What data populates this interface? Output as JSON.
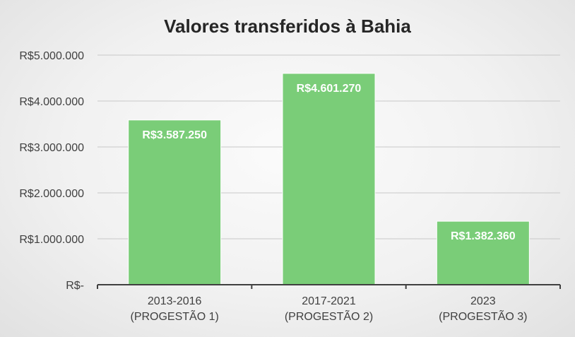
{
  "chart_data": {
    "type": "bar",
    "title": "Valores transferidos à Bahia",
    "categories": [
      [
        "2013-2016",
        "(PROGESTÃO 1)"
      ],
      [
        "2017-2021",
        "(PROGESTÃO 2)"
      ],
      [
        "2023",
        "(PROGESTÃO 3)"
      ]
    ],
    "series": [
      {
        "values": [
          3587250,
          4601270,
          1382360
        ],
        "data_labels": [
          "R$3.587.250",
          "R$4.601.270",
          "R$1.382.360"
        ]
      }
    ],
    "ylim": [
      0,
      5000000
    ],
    "yticks": [
      0,
      1000000,
      2000000,
      3000000,
      4000000,
      5000000
    ],
    "ytick_labels": [
      "R$-",
      "R$1.000.000",
      "R$2.000.000",
      "R$3.000.000",
      "R$4.000.000",
      "R$5.000.000"
    ],
    "xlabel": "",
    "ylabel": "",
    "grid": true,
    "legend": "none",
    "bar_color": "#7acd78"
  }
}
